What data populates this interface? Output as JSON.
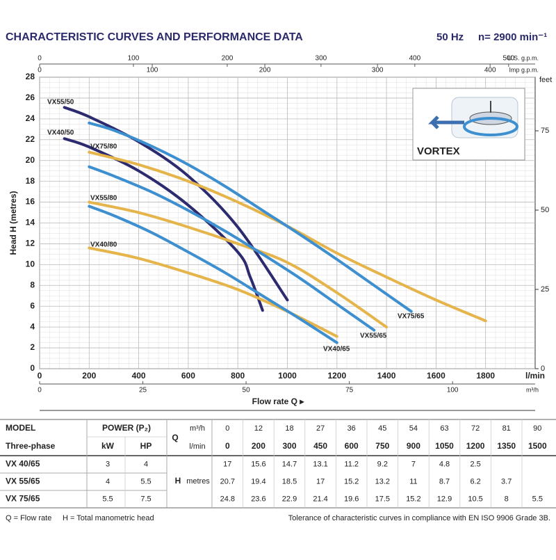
{
  "header": {
    "title": "CHARACTERISTIC CURVES AND PERFORMANCE DATA",
    "frequency": "50 Hz",
    "speed": "n= 2900 min⁻¹"
  },
  "chart_data": {
    "type": "line",
    "xlabel": "Flow rate Q ▸",
    "xunit": "l/min",
    "ylabel": "Head H (metres)",
    "xlim": [
      0,
      2000
    ],
    "xticks": [
      0,
      200,
      400,
      600,
      800,
      1000,
      1200,
      1400,
      1600,
      1800
    ],
    "ylim": [
      0,
      28
    ],
    "yticks": [
      0,
      2,
      4,
      6,
      8,
      10,
      12,
      14,
      16,
      18,
      20,
      22,
      24,
      26,
      28
    ],
    "y2label": "feet",
    "y2lim": [
      0,
      91.9
    ],
    "y2ticks": [
      0,
      25,
      50,
      75
    ],
    "secondary_x": [
      {
        "unit": "m³/h",
        "xlim": [
          0,
          120
        ],
        "xticks": [
          0,
          25,
          50,
          75,
          100
        ]
      },
      {
        "unit": "U.S. g.p.m.",
        "xlim": [
          0,
          528.3
        ],
        "xticks": [
          0,
          100,
          200,
          300,
          400,
          500
        ]
      },
      {
        "unit": "Imp g.p.m.",
        "xlim": [
          0,
          440
        ],
        "xticks": [
          0,
          100,
          200,
          300,
          400
        ]
      }
    ],
    "grid": true,
    "inset_label": "VORTEX",
    "series": [
      {
        "name": "VX55/50",
        "color": "#2d2b6f",
        "x": [
          100,
          200,
          400,
          600,
          800,
          1000
        ],
        "values": [
          25.1,
          24.2,
          21.8,
          18.5,
          13.6,
          6.6
        ]
      },
      {
        "name": "VX40/50",
        "color": "#2d2b6f",
        "x": [
          100,
          200,
          400,
          600,
          800,
          850,
          900
        ],
        "values": [
          22.1,
          21.3,
          19.0,
          15.7,
          11.2,
          8.8,
          5.6
        ]
      },
      {
        "name": "VX75/80",
        "color": "#e5b54c",
        "x": [
          200,
          400,
          600,
          800,
          1000,
          1200,
          1400,
          1600,
          1800
        ],
        "values": [
          20.8,
          19.6,
          18,
          16,
          13.7,
          11.1,
          8.8,
          6.6,
          4.6
        ]
      },
      {
        "name": "VX55/80",
        "color": "#e5b54c",
        "x": [
          200,
          400,
          600,
          800,
          1000,
          1200,
          1400
        ],
        "values": [
          16,
          15,
          13.6,
          12,
          10.2,
          7.3,
          4.0
        ]
      },
      {
        "name": "VX40/80",
        "color": "#e5b54c",
        "x": [
          200,
          400,
          600,
          800,
          1000,
          1200
        ],
        "values": [
          11.6,
          10.6,
          9.2,
          7.6,
          5.5,
          3.1
        ]
      },
      {
        "name": "VX75/65",
        "color": "#3d8fd0",
        "x": [
          200,
          300,
          450,
          600,
          750,
          900,
          1050,
          1200,
          1350,
          1500
        ],
        "values": [
          23.6,
          22.9,
          21.4,
          19.6,
          17.5,
          15.2,
          12.9,
          10.5,
          8,
          5.5
        ]
      },
      {
        "name": "VX55/65",
        "color": "#3d8fd0",
        "x": [
          200,
          300,
          450,
          600,
          750,
          900,
          1050,
          1200,
          1350
        ],
        "values": [
          19.4,
          18.5,
          17,
          15.2,
          13.2,
          11,
          8.7,
          6.2,
          3.7
        ]
      },
      {
        "name": "VX40/65",
        "color": "#3d8fd0",
        "x": [
          200,
          300,
          450,
          600,
          750,
          900,
          1050,
          1200
        ],
        "values": [
          15.6,
          14.7,
          13.1,
          11.2,
          9.2,
          7,
          4.8,
          2.5
        ]
      }
    ]
  },
  "table": {
    "model_header": "MODEL",
    "power_header": "POWER (P₂)",
    "phase_label": "Three-phase",
    "kw_header": "kW",
    "hp_header": "HP",
    "q_symbol": "Q",
    "h_symbol": "H",
    "h_unit": "metres",
    "m3h_unit": "m³/h",
    "lmin_unit": "l/min",
    "m3h": [
      0,
      12,
      18,
      27,
      36,
      45,
      54,
      63,
      72,
      81,
      90
    ],
    "lmin": [
      0,
      200,
      300,
      450,
      600,
      750,
      900,
      1050,
      1200,
      1350,
      1500
    ],
    "rows": [
      {
        "model": "VX 40/65",
        "kw": 3,
        "hp": 4,
        "values": [
          17,
          15.6,
          14.7,
          13.1,
          11.2,
          9.2,
          7,
          4.8,
          2.5,
          null,
          null
        ]
      },
      {
        "model": "VX 55/65",
        "kw": 4,
        "hp": 5.5,
        "values": [
          20.7,
          19.4,
          18.5,
          17,
          15.2,
          13.2,
          11,
          8.7,
          6.2,
          3.7,
          null
        ]
      },
      {
        "model": "VX 75/65",
        "kw": 5.5,
        "hp": 7.5,
        "values": [
          24.8,
          23.6,
          22.9,
          21.4,
          19.6,
          17.5,
          15.2,
          12.9,
          10.5,
          8,
          5.5
        ]
      }
    ]
  },
  "footer": {
    "q_legend": "Q = Flow rate",
    "h_legend": "H = Total manometric head",
    "tolerance": "Tolerance of characteristic curves in compliance with EN ISO 9906 Grade 3B."
  }
}
